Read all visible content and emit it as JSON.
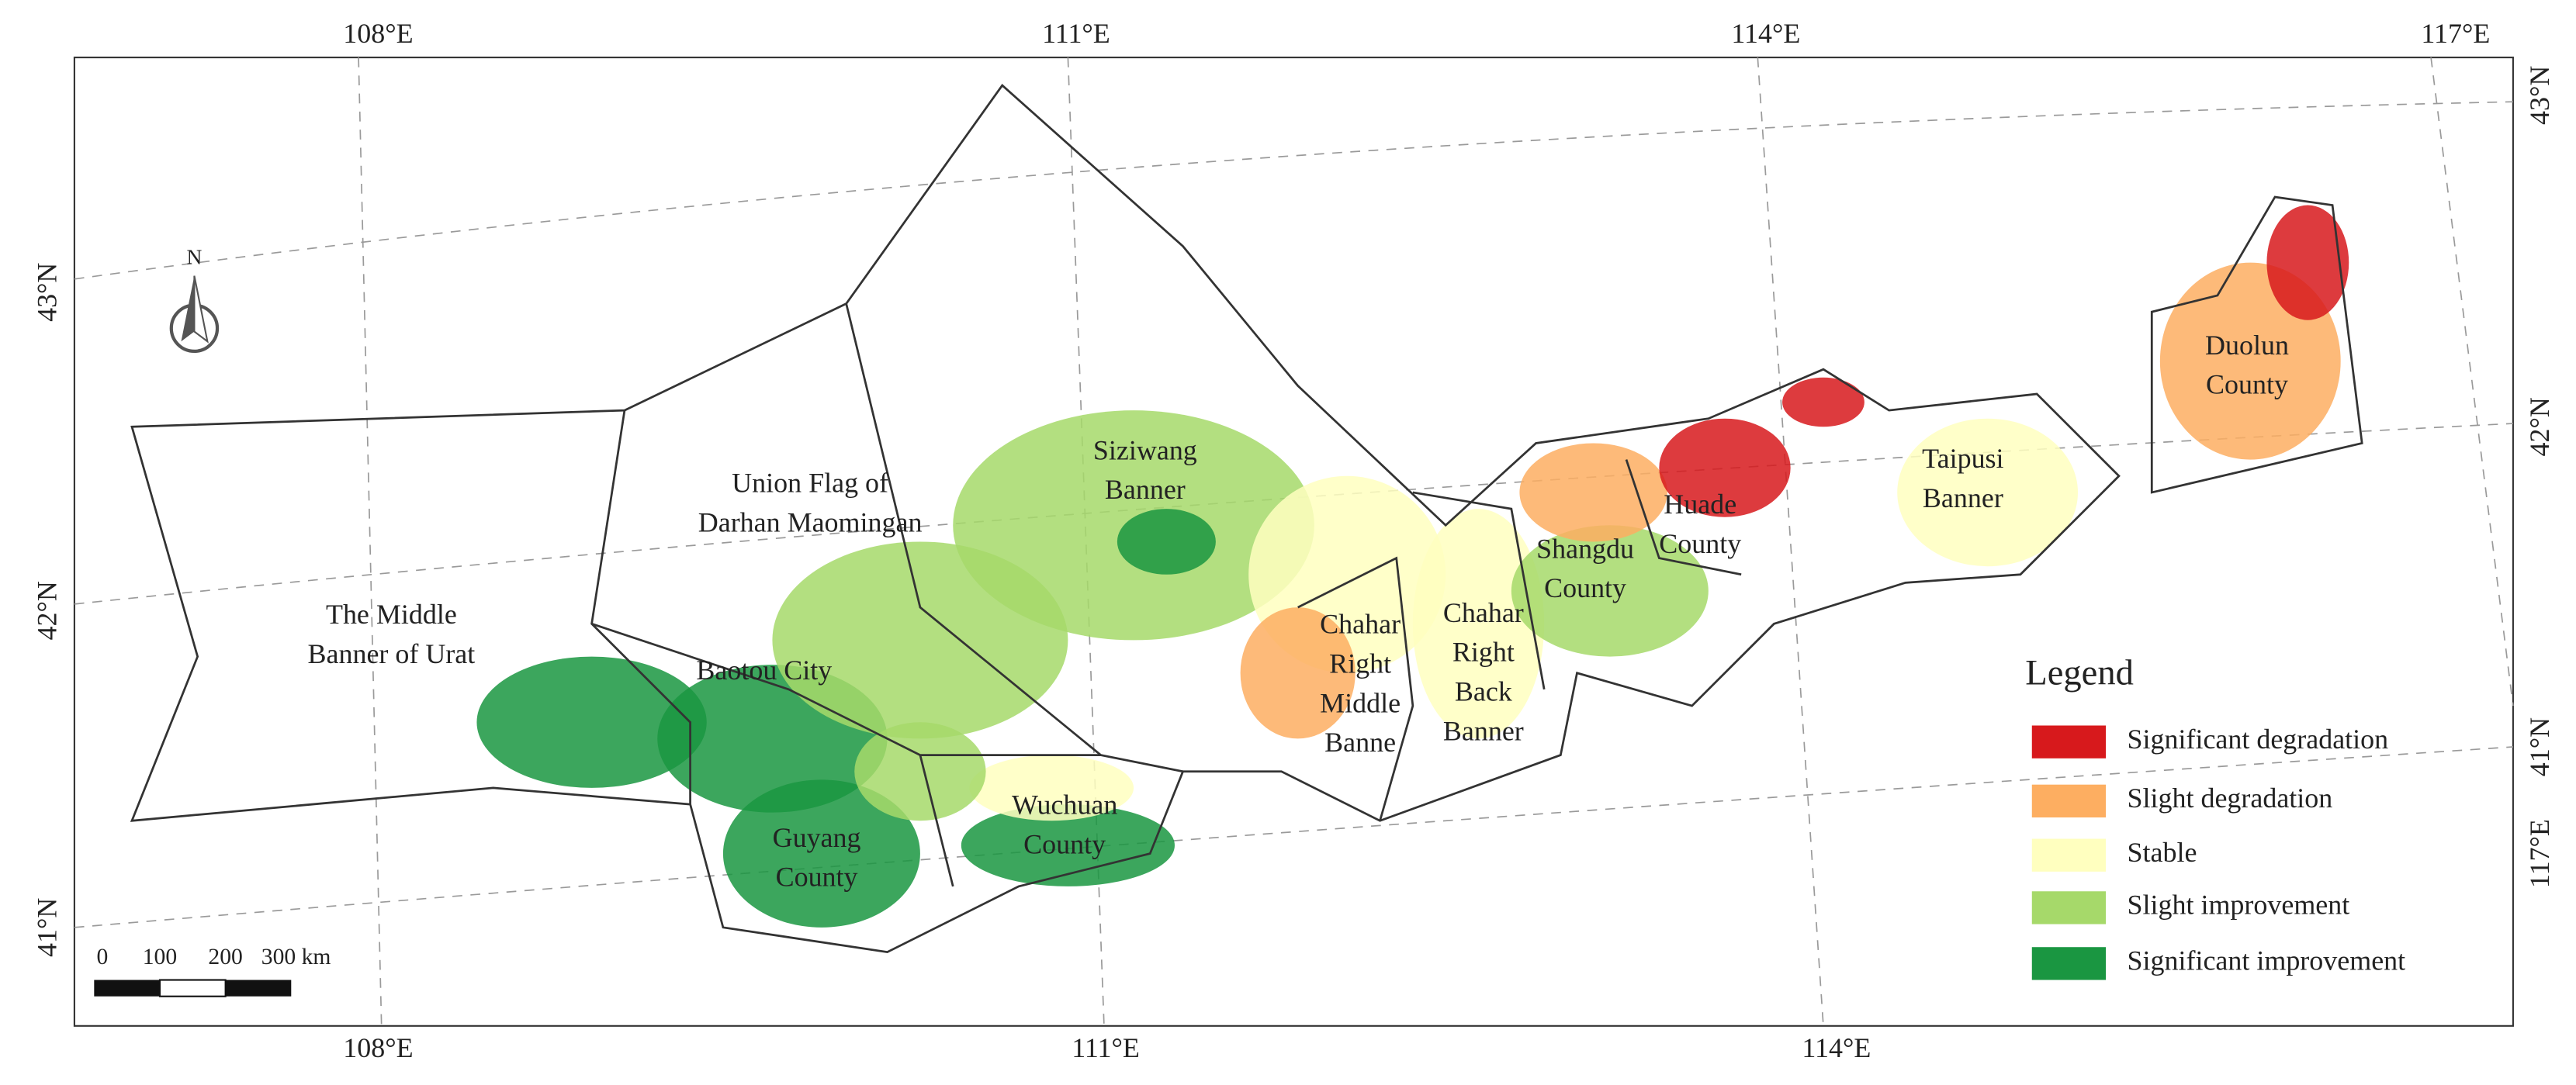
{
  "map": {
    "north_label": "N",
    "top_labels": [
      "108°E",
      "111°E",
      "114°E",
      "117°E"
    ],
    "bottom_labels": [
      "108°E",
      "111°E",
      "114°E"
    ],
    "left_labels": [
      "43°N",
      "42°N",
      "41°N"
    ],
    "right_labels": [
      "43°N",
      "42°N",
      "41°N",
      "117°E"
    ],
    "regions": [
      {
        "lines": [
          "The Middle",
          "Banner of Urat"
        ]
      },
      {
        "lines": [
          "Union Flag of",
          "Darhan Maomingan"
        ]
      },
      {
        "lines": [
          "Baotou City"
        ]
      },
      {
        "lines": [
          "Siziwang",
          "Banner"
        ]
      },
      {
        "lines": [
          "Guyang",
          "County"
        ]
      },
      {
        "lines": [
          "Wuchuan",
          "County"
        ]
      },
      {
        "lines": [
          "Chahar",
          "Right",
          "Middle",
          "Banne"
        ]
      },
      {
        "lines": [
          "Chahar",
          "Right",
          "Back",
          "Banner"
        ]
      },
      {
        "lines": [
          "Shangdu",
          "County"
        ]
      },
      {
        "lines": [
          "Huade",
          "County"
        ]
      },
      {
        "lines": [
          "Taipusi",
          "Banner"
        ]
      },
      {
        "lines": [
          "Duolun",
          "County"
        ]
      }
    ],
    "legend": {
      "title": "Legend",
      "items": [
        {
          "name": "Significant degradation",
          "color": "#d7191c"
        },
        {
          "name": "Slight degradation",
          "color": "#fdae61"
        },
        {
          "name": "Stable",
          "color": "#ffffbf"
        },
        {
          "name": "Slight improvement",
          "color": "#a6d96a"
        },
        {
          "name": "Significant improvement",
          "color": "#1a9641"
        }
      ]
    },
    "scale_labels": [
      "0",
      "100",
      "200",
      "300 km"
    ]
  }
}
